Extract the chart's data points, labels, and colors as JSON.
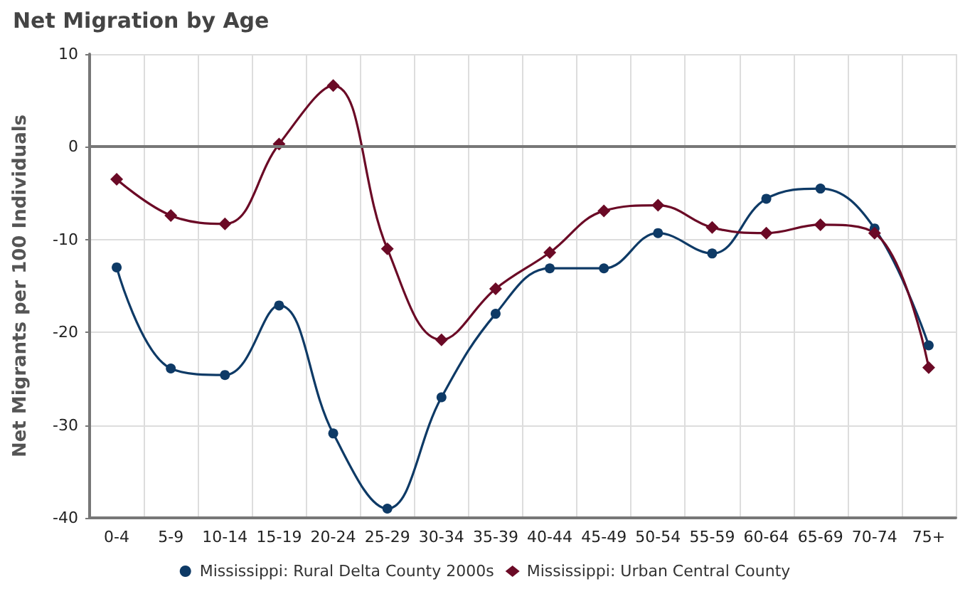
{
  "chart_data": {
    "type": "line",
    "title": "Net Migration by Age",
    "ylabel": "Net Migrants per 100 Individuals",
    "categories": [
      "0-4",
      "5-9",
      "10-14",
      "15-19",
      "20-24",
      "25-29",
      "30-34",
      "35-39",
      "40-44",
      "45-49",
      "50-54",
      "55-59",
      "60-64",
      "65-69",
      "70-74",
      "75+"
    ],
    "series": [
      {
        "name": "Mississippi: Rural Delta County 2000s",
        "color": "#0e3a66",
        "marker": "circle",
        "values": [
          -13,
          -23.9,
          -24.6,
          -17.1,
          -30.9,
          -39,
          -27,
          -18,
          -13.1,
          -13.1,
          -9.3,
          -11.5,
          -5.6,
          -4.5,
          -8.8,
          -21.4
        ]
      },
      {
        "name": "Mississippi: Urban Central County",
        "color": "#6b0a26",
        "marker": "diamond",
        "values": [
          -3.5,
          -7.4,
          -8.3,
          0.3,
          6.6,
          -11,
          -20.8,
          -15.3,
          -11.4,
          -6.9,
          -6.3,
          -8.7,
          -9.3,
          -8.4,
          -9.3,
          -23.8
        ]
      }
    ],
    "ylim": [
      -40,
      10
    ],
    "yticks": [
      -40,
      -30,
      -20,
      -10,
      0,
      10
    ],
    "grid": true,
    "legend": "bottom",
    "ref_lines": [
      {
        "axis": "y",
        "value": 0,
        "color": "#777777"
      }
    ]
  }
}
